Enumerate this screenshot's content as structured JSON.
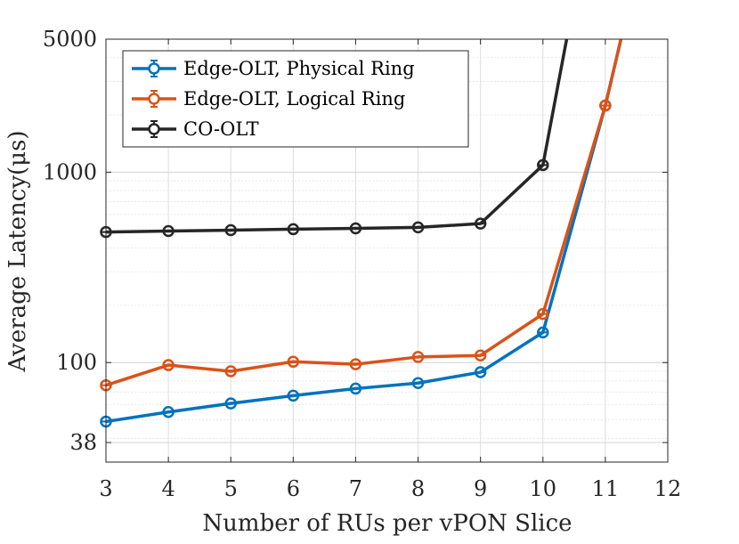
{
  "chart_data": {
    "type": "line",
    "title": "",
    "xlabel": "Number of RUs per vPON Slice",
    "ylabel": "Average Latency(μs)",
    "xlim": [
      3,
      12
    ],
    "ylim": [
      30,
      5000
    ],
    "yscale": "log",
    "xticks": [
      3,
      4,
      5,
      6,
      7,
      8,
      9,
      10,
      11,
      12
    ],
    "yticks": [
      38,
      100,
      1000,
      5000
    ],
    "xtick_labels": [
      "3",
      "4",
      "5",
      "6",
      "7",
      "8",
      "9",
      "10",
      "11",
      "12"
    ],
    "ytick_labels": [
      "38",
      "100",
      "1000",
      "5000"
    ],
    "grid": true,
    "legend_position": "top-left",
    "series": [
      {
        "name": "Edge-OLT, Physical Ring",
        "color": "#0072BD",
        "x": [
          3,
          4,
          5,
          6,
          7,
          8,
          9,
          10,
          11,
          11.25
        ],
        "values": [
          49,
          55,
          61,
          67,
          73,
          78,
          89,
          144,
          2240,
          5000
        ],
        "markers": [
          true,
          true,
          true,
          true,
          true,
          true,
          true,
          true,
          true,
          false
        ]
      },
      {
        "name": "Edge-OLT, Logical Ring",
        "color": "#D95319",
        "x": [
          3,
          4,
          5,
          6,
          7,
          8,
          9,
          10,
          11,
          11.25
        ],
        "values": [
          76,
          97,
          90,
          101,
          98,
          107,
          109,
          180,
          2240,
          5000
        ],
        "markers": [
          true,
          true,
          true,
          true,
          true,
          true,
          true,
          true,
          true,
          false
        ]
      },
      {
        "name": "CO-OLT",
        "color": "#262626",
        "x": [
          3,
          4,
          5,
          6,
          7,
          8,
          9,
          10,
          10.38
        ],
        "values": [
          485,
          491,
          496,
          502,
          507,
          513,
          537,
          1090,
          5000
        ],
        "markers": [
          true,
          true,
          true,
          true,
          true,
          true,
          true,
          true,
          false
        ]
      }
    ]
  }
}
